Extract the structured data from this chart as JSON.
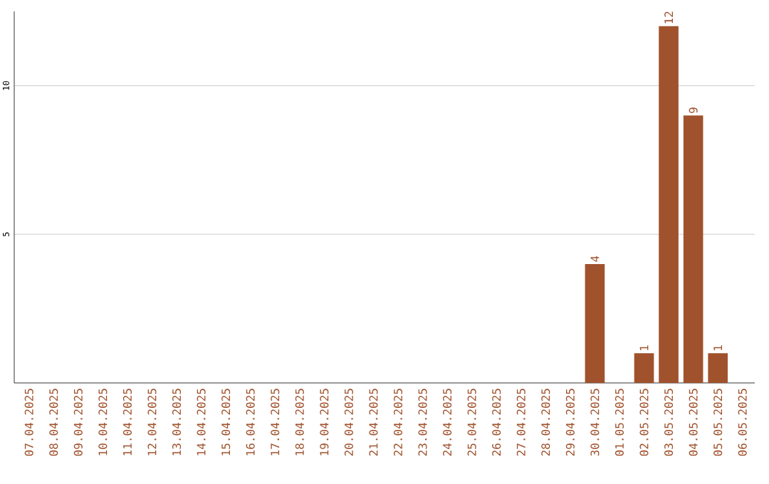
{
  "chart_data": {
    "type": "bar",
    "categories": [
      "07.04.2025",
      "08.04.2025",
      "09.04.2025",
      "10.04.2025",
      "11.04.2025",
      "12.04.2025",
      "13.04.2025",
      "14.04.2025",
      "15.04.2025",
      "16.04.2025",
      "17.04.2025",
      "18.04.2025",
      "19.04.2025",
      "20.04.2025",
      "21.04.2025",
      "22.04.2025",
      "23.04.2025",
      "24.04.2025",
      "25.04.2025",
      "26.04.2025",
      "27.04.2025",
      "28.04.2025",
      "29.04.2025",
      "30.04.2025",
      "01.05.2025",
      "02.05.2025",
      "03.05.2025",
      "04.05.2025",
      "05.05.2025",
      "06.05.2025"
    ],
    "values": [
      0,
      0,
      0,
      0,
      0,
      0,
      0,
      0,
      0,
      0,
      0,
      0,
      0,
      0,
      0,
      0,
      0,
      0,
      0,
      0,
      0,
      0,
      0,
      4,
      0,
      1,
      12,
      9,
      1,
      0
    ],
    "value_labels": [
      null,
      null,
      null,
      null,
      null,
      null,
      null,
      null,
      null,
      null,
      null,
      null,
      null,
      null,
      null,
      null,
      null,
      null,
      null,
      null,
      null,
      null,
      null,
      "4",
      null,
      "1",
      "12",
      "9",
      "1",
      null
    ],
    "color": "#a0522d",
    "ylim": [
      0,
      12.5
    ],
    "yticks": [
      5,
      10
    ],
    "grid": "y"
  }
}
